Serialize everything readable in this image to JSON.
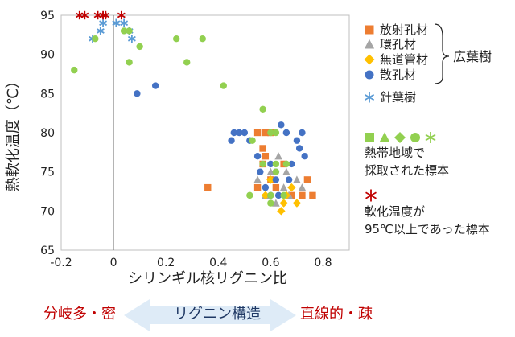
{
  "chart_data": {
    "type": "scatter",
    "xlabel": "シリンギル核リグニン比",
    "ylabel": "熱軟化温度（℃）",
    "xlim": [
      -0.2,
      0.9
    ],
    "ylim": [
      65,
      95
    ],
    "x_ticks": [
      "-0.2",
      "0",
      "0.2",
      "0.4",
      "0.6",
      "0.8"
    ],
    "x_tick_values": [
      -0.2,
      0,
      0.2,
      0.4,
      0.6,
      0.8
    ],
    "y_ticks": [
      "65",
      "70",
      "75",
      "80",
      "85",
      "90",
      "95"
    ],
    "y_tick_values": [
      65,
      70,
      75,
      80,
      85,
      90,
      95
    ],
    "zero_line_x": 0,
    "series": [
      {
        "name": "放射孔材",
        "marker": "square",
        "color": "#ED7D31",
        "points": [
          [
            0.36,
            73
          ],
          [
            0.55,
            80
          ],
          [
            0.58,
            80
          ],
          [
            0.6,
            80
          ],
          [
            0.57,
            78
          ],
          [
            0.58,
            77
          ],
          [
            0.55,
            73
          ],
          [
            0.62,
            73
          ],
          [
            0.65,
            76
          ],
          [
            0.68,
            72
          ],
          [
            0.72,
            72
          ],
          [
            0.76,
            72
          ],
          [
            0.74,
            74
          ],
          [
            0.6,
            74
          ],
          [
            0.57,
            76
          ]
        ]
      },
      {
        "name": "環孔材",
        "marker": "triangle",
        "color": "#A5A5A5",
        "points": [
          [
            0.55,
            74
          ],
          [
            0.6,
            75
          ],
          [
            0.63,
            77
          ],
          [
            0.65,
            73
          ],
          [
            0.67,
            72
          ],
          [
            0.7,
            74
          ],
          [
            0.72,
            73
          ],
          [
            0.66,
            75
          ],
          [
            0.58,
            72
          ],
          [
            0.62,
            71
          ]
        ]
      },
      {
        "name": "無道管材",
        "marker": "diamond",
        "color": "#FFC000",
        "points": [
          [
            0.64,
            70
          ],
          [
            0.65,
            71
          ],
          [
            0.66,
            72
          ],
          [
            0.7,
            71
          ],
          [
            0.58,
            72
          ],
          [
            0.68,
            73
          ],
          [
            0.6,
            74
          ]
        ]
      },
      {
        "name": "散孔材",
        "marker": "circle",
        "color": "#4472C4",
        "points": [
          [
            0.09,
            85
          ],
          [
            0.16,
            86
          ],
          [
            0.46,
            80
          ],
          [
            0.48,
            80
          ],
          [
            0.45,
            79
          ],
          [
            0.5,
            80
          ],
          [
            0.52,
            79
          ],
          [
            0.55,
            77
          ],
          [
            0.56,
            75
          ],
          [
            0.58,
            73
          ],
          [
            0.6,
            76
          ],
          [
            0.62,
            75
          ],
          [
            0.64,
            81
          ],
          [
            0.66,
            80
          ],
          [
            0.68,
            76
          ],
          [
            0.7,
            79
          ],
          [
            0.71,
            78
          ],
          [
            0.72,
            80
          ],
          [
            0.73,
            77
          ],
          [
            0.67,
            74
          ],
          [
            0.63,
            72
          ],
          [
            0.6,
            72
          ],
          [
            0.62,
            74
          ]
        ]
      },
      {
        "name": "針葉樹",
        "marker": "asterisk",
        "color": "#5B9BD5",
        "points": [
          [
            -0.08,
            92
          ],
          [
            -0.05,
            93
          ],
          [
            -0.04,
            94
          ],
          [
            0.01,
            94
          ],
          [
            0.04,
            94
          ],
          [
            0.07,
            92
          ],
          [
            0.06,
            93
          ]
        ]
      },
      {
        "name": "熱帯地域で採取された標本",
        "marker": "circle",
        "color": "#92D050",
        "points": [
          [
            -0.15,
            88
          ],
          [
            0.04,
            93
          ],
          [
            0.06,
            93
          ],
          [
            0.1,
            91
          ],
          [
            0.24,
            92
          ],
          [
            0.28,
            89
          ],
          [
            0.34,
            92
          ],
          [
            0.42,
            86
          ],
          [
            0.57,
            83
          ],
          [
            0.53,
            79
          ],
          [
            0.6,
            80
          ],
          [
            0.62,
            80
          ],
          [
            0.57,
            76
          ],
          [
            0.52,
            72
          ],
          [
            0.6,
            72
          ],
          [
            0.62,
            75
          ],
          [
            0.65,
            72
          ],
          [
            0.62,
            76
          ],
          [
            0.66,
            76
          ],
          [
            0.6,
            71
          ],
          [
            0.06,
            89
          ],
          [
            -0.07,
            92
          ]
        ]
      },
      {
        "name": "軟化温度が95℃以上であった標本",
        "marker": "asterisk",
        "color": "#C00000",
        "points": [
          [
            -0.13,
            95
          ],
          [
            -0.11,
            95
          ],
          [
            -0.06,
            95
          ],
          [
            -0.03,
            95
          ],
          [
            -0.04,
            95
          ],
          [
            0.03,
            95
          ]
        ]
      }
    ],
    "legend": {
      "placement": "right",
      "hardwood_group_label": "広葉樹",
      "items": [
        {
          "label": "放射孔材",
          "marker": "square",
          "color": "#ED7D31"
        },
        {
          "label": "環孔材",
          "marker": "triangle",
          "color": "#A5A5A5"
        },
        {
          "label": "無道管材",
          "marker": "diamond",
          "color": "#FFC000"
        },
        {
          "label": "散孔材",
          "marker": "circle",
          "color": "#4472C4"
        },
        {
          "label": "針葉樹",
          "marker": "asterisk",
          "color": "#5B9BD5"
        }
      ],
      "tropical_note_line1": "熱帯地域で",
      "tropical_note_line2": "採取された標本",
      "tropical_color": "#92D050",
      "hot_note_line1": "軟化温度が",
      "hot_note_line2": "95℃以上であった標本",
      "hot_color": "#C00000"
    }
  },
  "bottom": {
    "left_label": "分岐多・密",
    "arrow_label": "リグニン構造",
    "right_label": "直線的・疎",
    "arrow_color": "#DEEBF7"
  }
}
